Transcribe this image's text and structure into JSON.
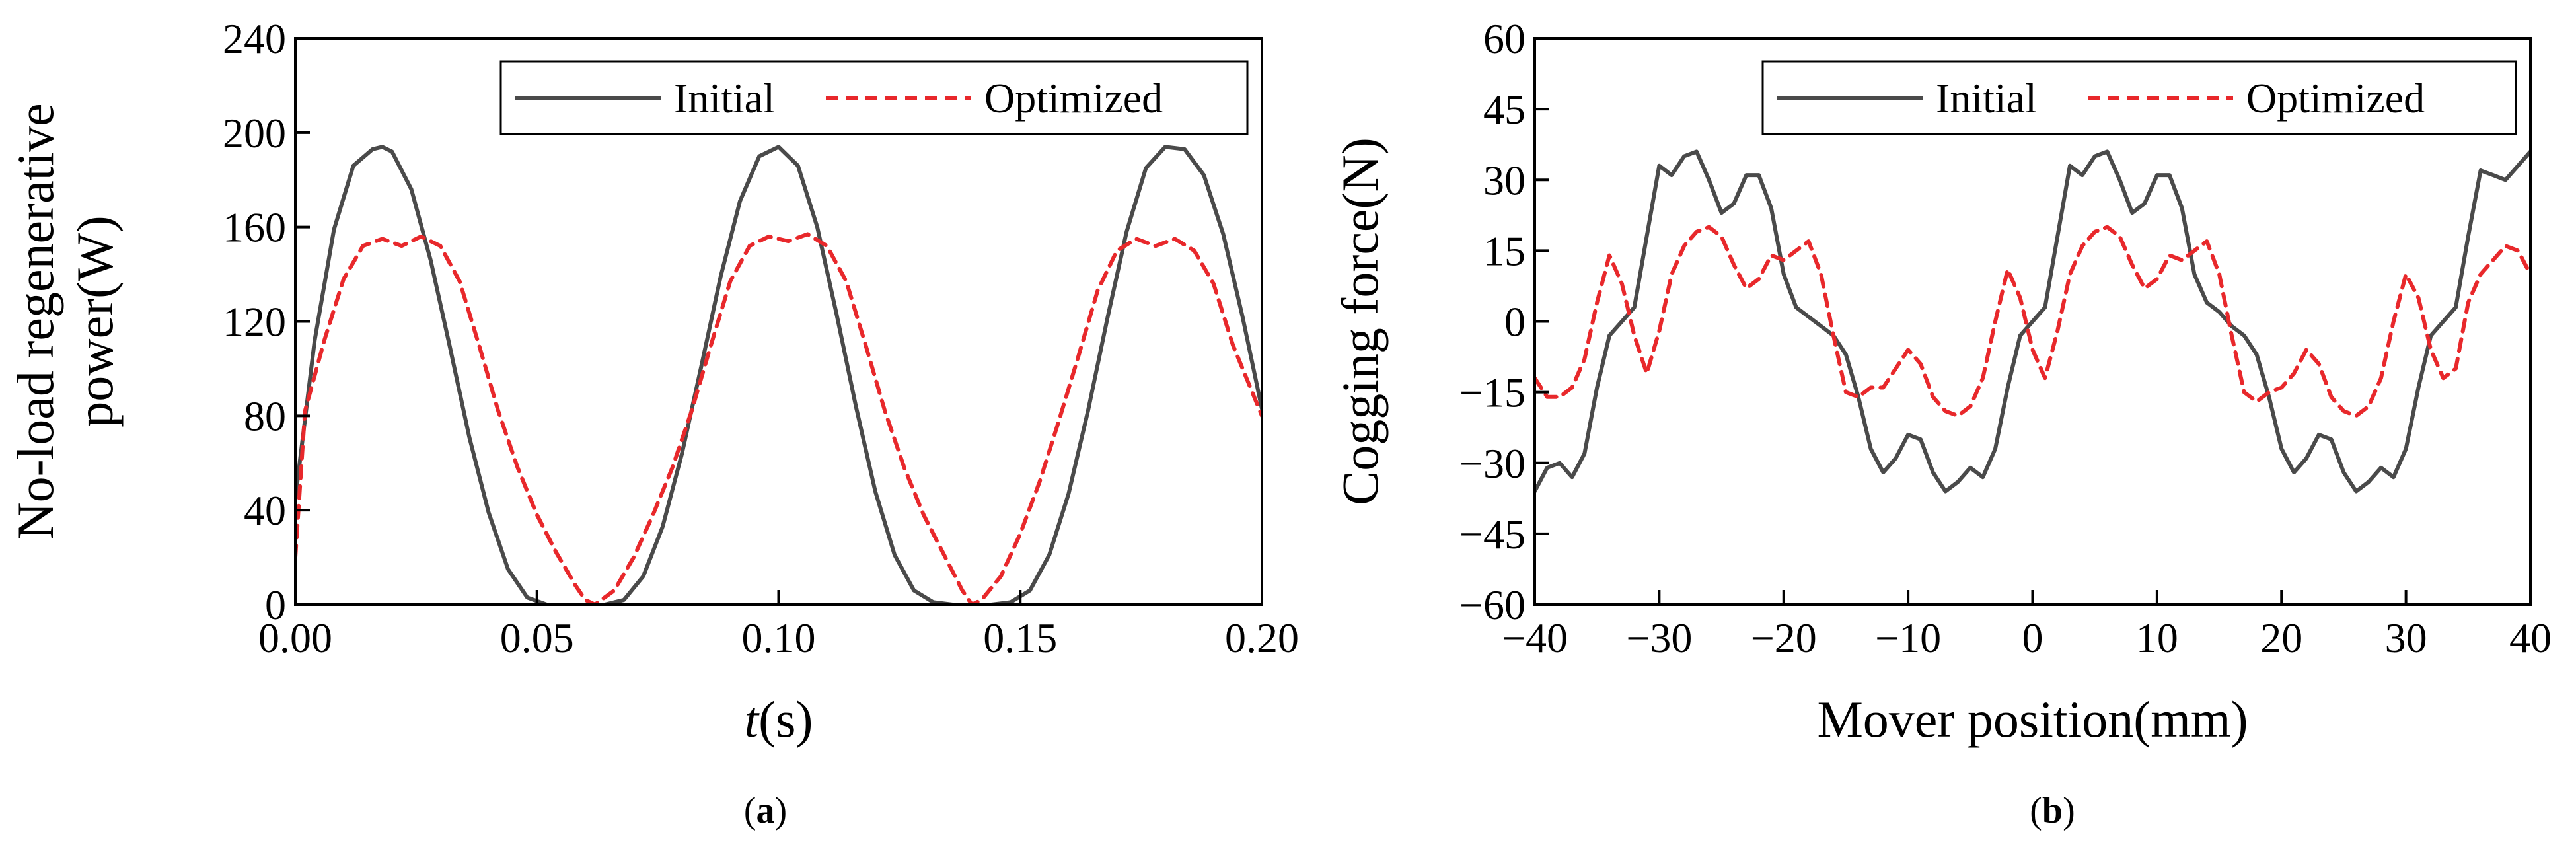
{
  "chart_data": [
    {
      "type": "line",
      "panel": "a",
      "caption_label": "a",
      "xlabel_italic": "t",
      "xlabel_unit": "(s)",
      "ylabel_line1": "No-load regenerative",
      "ylabel_line2": "power(W)",
      "xlim": [
        0,
        0.2
      ],
      "ylim": [
        0,
        240
      ],
      "xticks": [
        "0.00",
        "0.05",
        "0.10",
        "0.15",
        "0.20"
      ],
      "yticks": [
        "0",
        "40",
        "80",
        "120",
        "160",
        "200",
        "240"
      ],
      "legend_position": "top-right",
      "series": [
        {
          "name": "Initial",
          "color": "#4a4a4a",
          "style": "solid",
          "x": [
            0,
            0.004,
            0.008,
            0.012,
            0.016,
            0.018,
            0.02,
            0.024,
            0.028,
            0.032,
            0.036,
            0.04,
            0.044,
            0.048,
            0.052,
            0.056,
            0.06,
            0.064,
            0.068,
            0.072,
            0.076,
            0.08,
            0.084,
            0.088,
            0.092,
            0.096,
            0.1,
            0.104,
            0.108,
            0.112,
            0.116,
            0.12,
            0.124,
            0.128,
            0.132,
            0.136,
            0.14,
            0.144,
            0.148,
            0.152,
            0.156,
            0.16,
            0.164,
            0.168,
            0.172,
            0.176,
            0.18,
            0.184,
            0.188,
            0.192,
            0.196,
            0.2
          ],
          "y": [
            45,
            112,
            159,
            186,
            193,
            194,
            192,
            176,
            146,
            109,
            71,
            39,
            15,
            3,
            0,
            0,
            0,
            0,
            2,
            12,
            33,
            64,
            101,
            139,
            171,
            190,
            194,
            186,
            160,
            123,
            84,
            48,
            21,
            6,
            1,
            0,
            0,
            0,
            1,
            6,
            21,
            47,
            82,
            121,
            158,
            185,
            194,
            193,
            182,
            157,
            122,
            83
          ]
        },
        {
          "name": "Optimized",
          "color": "#e8282b",
          "style": "dashed",
          "x": [
            0,
            0.002,
            0.006,
            0.01,
            0.014,
            0.018,
            0.022,
            0.026,
            0.03,
            0.034,
            0.038,
            0.042,
            0.046,
            0.05,
            0.054,
            0.058,
            0.06,
            0.062,
            0.066,
            0.07,
            0.074,
            0.078,
            0.082,
            0.086,
            0.09,
            0.094,
            0.098,
            0.102,
            0.106,
            0.11,
            0.114,
            0.118,
            0.122,
            0.126,
            0.13,
            0.134,
            0.138,
            0.14,
            0.142,
            0.146,
            0.15,
            0.154,
            0.158,
            0.162,
            0.166,
            0.17,
            0.174,
            0.178,
            0.182,
            0.186,
            0.19,
            0.194,
            0.198,
            0.2
          ],
          "y": [
            20,
            82,
            112,
            138,
            152,
            155,
            152,
            156,
            152,
            137,
            110,
            82,
            58,
            38,
            22,
            8,
            2,
            0,
            6,
            20,
            38,
            58,
            82,
            110,
            137,
            152,
            156,
            154,
            157,
            152,
            137,
            110,
            82,
            58,
            38,
            22,
            6,
            0,
            2,
            12,
            30,
            52,
            78,
            105,
            133,
            150,
            155,
            152,
            155,
            150,
            136,
            110,
            90,
            80
          ]
        }
      ]
    },
    {
      "type": "line",
      "panel": "b",
      "caption_label": "b",
      "xlabel": "Mover position(mm)",
      "ylabel": "Cogging force(N)",
      "xlim": [
        -40,
        40
      ],
      "ylim": [
        -60,
        60
      ],
      "xticks": [
        "−40",
        "−30",
        "−20",
        "−10",
        "0",
        "10",
        "20",
        "30",
        "40"
      ],
      "yticks": [
        "−60",
        "−45",
        "−30",
        "−15",
        "0",
        "15",
        "30",
        "45",
        "60"
      ],
      "legend_position": "top-right",
      "series": [
        {
          "name": "Initial",
          "color": "#4a4a4a",
          "style": "solid",
          "x": [
            -40,
            -39,
            -38,
            -37,
            -36,
            -35,
            -34,
            -33,
            -32,
            -31,
            -30,
            -29,
            -28,
            -27,
            -26,
            -25,
            -24,
            -23,
            -22,
            -21,
            -20,
            -19,
            -18,
            -17,
            -16,
            -15,
            -14,
            -13,
            -12,
            -11,
            -10,
            -9,
            -8,
            -7,
            -6,
            -5,
            -4,
            -3,
            -2,
            -1,
            0,
            1,
            2,
            3,
            4,
            5,
            6,
            7,
            8,
            9,
            10,
            11,
            12,
            13,
            14,
            15,
            16,
            17,
            18,
            19,
            20,
            21,
            22,
            23,
            24,
            25,
            26,
            27,
            28,
            29,
            30,
            31,
            32,
            33,
            34,
            35,
            36,
            37,
            38,
            39,
            40
          ],
          "y": [
            -36,
            -31,
            -30,
            -33,
            -28,
            -14,
            -3,
            0,
            3,
            18,
            33,
            31,
            35,
            36,
            30,
            23,
            25,
            31,
            31,
            24,
            10,
            3,
            1,
            -1,
            -3,
            -7,
            -16,
            -27,
            -32,
            -29,
            -24,
            -25,
            -32,
            -36,
            -34,
            -31,
            -33,
            -27,
            -14,
            -3,
            0,
            3,
            18,
            33,
            31,
            35,
            36,
            30,
            23,
            25,
            31,
            31,
            24,
            10,
            4,
            2,
            -1,
            -3,
            -7,
            -16,
            -27,
            -32,
            -29,
            -24,
            -25,
            -32,
            -36,
            -34,
            -31,
            -33,
            -27,
            -14,
            -3,
            0,
            3,
            18,
            32,
            31,
            30,
            33,
            36
          ]
        },
        {
          "name": "Optimized",
          "color": "#e8282b",
          "style": "dashed",
          "x": [
            -40,
            -39,
            -38,
            -37,
            -36,
            -35,
            -34,
            -33,
            -32,
            -31,
            -30,
            -29,
            -28,
            -27,
            -26,
            -25,
            -24,
            -23,
            -22,
            -21,
            -20,
            -19,
            -18,
            -17,
            -16,
            -15,
            -14,
            -13,
            -12,
            -11,
            -10,
            -9,
            -8,
            -7,
            -6,
            -5,
            -4,
            -3,
            -2,
            -1,
            0,
            1,
            2,
            3,
            4,
            5,
            6,
            7,
            8,
            9,
            10,
            11,
            12,
            13,
            14,
            15,
            16,
            17,
            18,
            19,
            20,
            21,
            22,
            23,
            24,
            25,
            26,
            27,
            28,
            29,
            30,
            31,
            32,
            33,
            34,
            35,
            36,
            37,
            38,
            39,
            40
          ],
          "y": [
            -12,
            -16,
            -16,
            -14,
            -8,
            4,
            14,
            8,
            -3,
            -11,
            -2,
            10,
            16,
            19,
            20,
            18,
            12,
            7,
            9,
            14,
            13,
            15,
            17,
            10,
            -3,
            -15,
            -16,
            -14,
            -14,
            -10,
            -6,
            -9,
            -16,
            -19,
            -20,
            -18,
            -12,
            0,
            11,
            5,
            -6,
            -12,
            -2,
            10,
            16,
            19,
            20,
            18,
            12,
            7,
            9,
            14,
            13,
            15,
            17,
            10,
            -3,
            -15,
            -17,
            -15,
            -14,
            -11,
            -6,
            -9,
            -16,
            -19,
            -20,
            -18,
            -12,
            0,
            10,
            5,
            -6,
            -12,
            -10,
            4,
            10,
            13,
            16,
            15,
            10
          ]
        }
      ]
    }
  ]
}
